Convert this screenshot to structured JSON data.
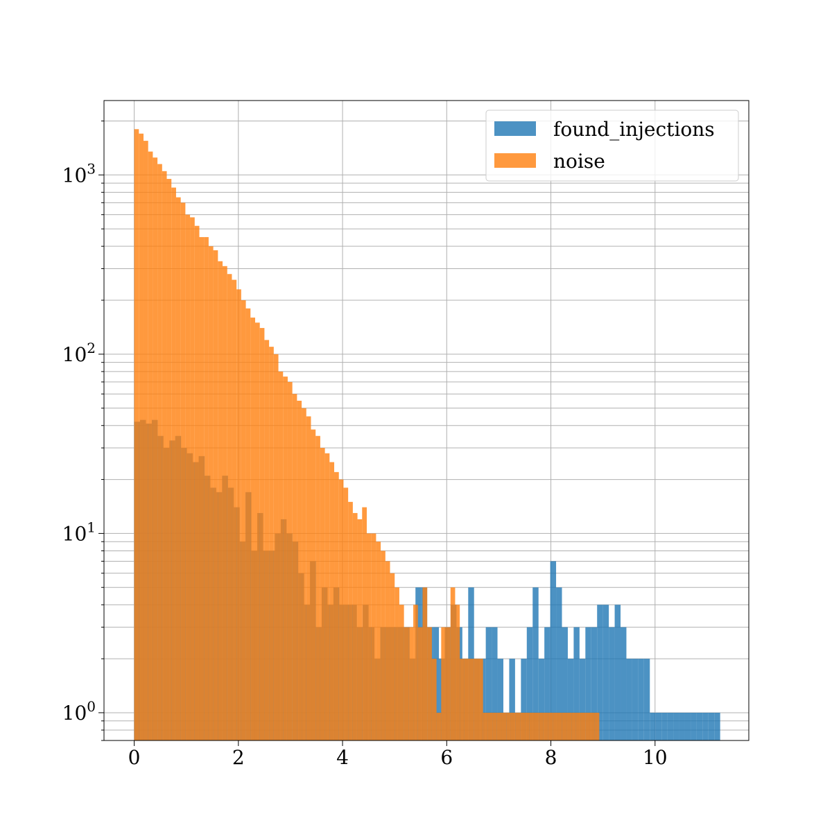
{
  "chart_data": {
    "type": "bar",
    "title": "",
    "xlabel": "",
    "ylabel": "",
    "y_scale": "log",
    "x_range": [
      -0.58,
      11.8
    ],
    "y_range": [
      0.7,
      2600
    ],
    "grid": true,
    "legend_position": "top-right",
    "x_ticks": [
      {
        "value": 0,
        "label": "0"
      },
      {
        "value": 2,
        "label": "2"
      },
      {
        "value": 4,
        "label": "4"
      },
      {
        "value": 6,
        "label": "6"
      },
      {
        "value": 8,
        "label": "8"
      },
      {
        "value": 10,
        "label": "10"
      }
    ],
    "y_ticks": [
      {
        "value": 1,
        "base": "10",
        "exp": "0"
      },
      {
        "value": 10,
        "base": "10",
        "exp": "1"
      },
      {
        "value": 100,
        "base": "10",
        "exp": "2"
      },
      {
        "value": 1000,
        "base": "10",
        "exp": "3"
      }
    ],
    "series": [
      {
        "name": "found_injections",
        "color": "#1f77b4",
        "opacity": 0.8,
        "bin_start": 0.0,
        "bin_width": 0.1125,
        "values": [
          42,
          43,
          41,
          43,
          35,
          30,
          33,
          35,
          30,
          28,
          25,
          27,
          21,
          18,
          17,
          21,
          18,
          14,
          9,
          17,
          8,
          13,
          8,
          8,
          10,
          12,
          10,
          9,
          6,
          4,
          7,
          3,
          5,
          4,
          5,
          4,
          4,
          4,
          3,
          4,
          3,
          2,
          3,
          3,
          3,
          3,
          3,
          2,
          5,
          5,
          3,
          3,
          2,
          3,
          4,
          3,
          2,
          5,
          2,
          2,
          3,
          3,
          2,
          1,
          2,
          1,
          2,
          3,
          5,
          2,
          3,
          7,
          5,
          3,
          2,
          3,
          2,
          3,
          3,
          4,
          4,
          3,
          4,
          3,
          2,
          2,
          2,
          2,
          1,
          1,
          1,
          1,
          1,
          1,
          1,
          1,
          1,
          1,
          1,
          1
        ]
      },
      {
        "name": "noise",
        "color": "#ff7f0e",
        "opacity": 0.8,
        "bin_start": 0.0,
        "bin_width": 0.0893,
        "values": [
          1800,
          1700,
          1550,
          1350,
          1250,
          1150,
          1050,
          950,
          850,
          750,
          700,
          600,
          580,
          520,
          450,
          450,
          400,
          380,
          330,
          310,
          280,
          260,
          230,
          200,
          180,
          160,
          150,
          140,
          120,
          110,
          100,
          80,
          75,
          70,
          60,
          55,
          50,
          45,
          38,
          35,
          30,
          28,
          25,
          22,
          20,
          18,
          15,
          13,
          12,
          14,
          10,
          10,
          9,
          8,
          7,
          6,
          5,
          4,
          3,
          3,
          4,
          3,
          5,
          3,
          2,
          1,
          3,
          3,
          5,
          4,
          2,
          2,
          2,
          2,
          2,
          1,
          1,
          1,
          1,
          1,
          1,
          1,
          1,
          1,
          1,
          1,
          1,
          1,
          1,
          1,
          1,
          1,
          1,
          1,
          1,
          1,
          1,
          1,
          1,
          1
        ]
      }
    ]
  }
}
